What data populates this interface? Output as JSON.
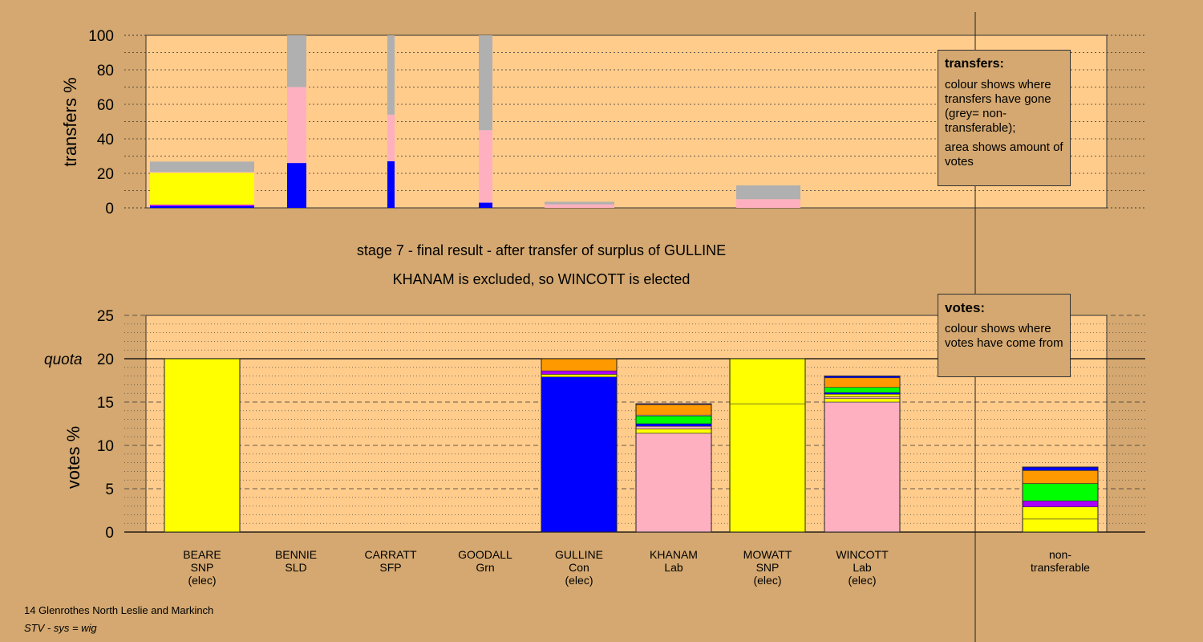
{
  "chart_data": [
    {
      "type": "bar",
      "stacked": true,
      "ylabel": "transfers %",
      "ylim": [
        0,
        100
      ],
      "yticks": [
        0,
        20,
        40,
        60,
        80,
        100
      ],
      "grid": true,
      "series_colors": {
        "SNP": "#ffff00",
        "SLD": "#aa00ff",
        "SFP": "#00ff00",
        "Con": "#0000ff",
        "Lab": "#ffb0c0",
        "Grn": "#ff9900",
        "nontransferable": "#b0b0b0"
      },
      "bars": [
        {
          "name": "BEARE",
          "segments": [
            {
              "party": "Con",
              "value": 1
            },
            {
              "party": "SLD",
              "value": 0.8
            },
            {
              "party": "SNP",
              "value": 18.5
            },
            {
              "party": "Lab",
              "value": 0.5
            },
            {
              "party": "nontransferable",
              "value": 6
            }
          ]
        },
        {
          "name": "BENNIE",
          "segments": [
            {
              "party": "Con",
              "value": 26
            },
            {
              "party": "Lab",
              "value": 44
            },
            {
              "party": "nontransferable",
              "value": 30
            }
          ]
        },
        {
          "name": "CARRATT",
          "segments": [
            {
              "party": "Con",
              "value": 27
            },
            {
              "party": "Lab",
              "value": 27
            },
            {
              "party": "nontransferable",
              "value": 46
            }
          ]
        },
        {
          "name": "GOODALL",
          "segments": [
            {
              "party": "Con",
              "value": 3
            },
            {
              "party": "Lab",
              "value": 42
            },
            {
              "party": "nontransferable",
              "value": 55
            }
          ]
        },
        {
          "name": "GULLINE",
          "segments": [
            {
              "party": "Lab",
              "value": 2
            },
            {
              "party": "nontransferable",
              "value": 1.5
            }
          ]
        },
        {
          "name": "MOWATT",
          "segments": [
            {
              "party": "Lab",
              "value": 5
            },
            {
              "party": "nontransferable",
              "value": 8
            }
          ]
        }
      ]
    },
    {
      "type": "bar",
      "stacked": true,
      "ylabel": "votes %",
      "ylim": [
        0,
        25
      ],
      "yticks": [
        0,
        5,
        10,
        15,
        20,
        25
      ],
      "quota": 20,
      "quota_label": "quota",
      "grid": true,
      "categories": [
        {
          "lines": [
            "BEARE",
            "SNP",
            "(elec)"
          ]
        },
        {
          "lines": [
            "BENNIE",
            "SLD"
          ]
        },
        {
          "lines": [
            "CARRATT",
            "SFP"
          ]
        },
        {
          "lines": [
            "GOODALL",
            "Grn"
          ]
        },
        {
          "lines": [
            "GULLINE",
            "Con",
            "(elec)"
          ]
        },
        {
          "lines": [
            "KHANAM",
            "Lab"
          ]
        },
        {
          "lines": [
            "MOWATT",
            "SNP",
            "(elec)"
          ]
        },
        {
          "lines": [
            "WINCOTT",
            "Lab",
            "(elec)"
          ]
        },
        {
          "lines": [
            "non-",
            "transferable"
          ]
        }
      ],
      "bars": [
        {
          "name": "BEARE",
          "segments": [
            {
              "color": "#ffff00",
              "value": 20
            }
          ]
        },
        {
          "name": "BENNIE",
          "segments": []
        },
        {
          "name": "CARRATT",
          "segments": []
        },
        {
          "name": "GOODALL",
          "segments": []
        },
        {
          "name": "GULLINE",
          "segments": [
            {
              "color": "#0000ff",
              "value": 17.9
            },
            {
              "color": "#ffff00",
              "value": 0.3
            },
            {
              "color": "#aa00ff",
              "value": 0.4
            },
            {
              "color": "#ff9900",
              "value": 1.4
            }
          ]
        },
        {
          "name": "KHANAM",
          "segments": [
            {
              "color": "#ffb0c0",
              "value": 11.4
            },
            {
              "color": "#ffff00",
              "value": 0.5
            },
            {
              "color": "#ffb0c0",
              "value": 0.3
            },
            {
              "color": "#0000ff",
              "value": 0.3
            },
            {
              "color": "#00ff00",
              "value": 0.9
            },
            {
              "color": "#ffb0c0",
              "value": 0.1
            },
            {
              "color": "#ff9900",
              "value": 1.2
            },
            {
              "color": "#0000ff",
              "value": 0.1
            }
          ]
        },
        {
          "name": "MOWATT",
          "segments": [
            {
              "color": "#ffff00",
              "value": 14.8
            },
            {
              "color": "#ffff00",
              "value": 5.2
            }
          ]
        },
        {
          "name": "WINCOTT",
          "segments": [
            {
              "color": "#ffb0c0",
              "value": 15
            },
            {
              "color": "#ffff00",
              "value": 0.4
            },
            {
              "color": "#ffb0c0",
              "value": 0.2
            },
            {
              "color": "#ffff00",
              "value": 0.3
            },
            {
              "color": "#0000ff",
              "value": 0.2
            },
            {
              "color": "#00ff00",
              "value": 0.6
            },
            {
              "color": "#ff9900",
              "value": 1.1
            },
            {
              "color": "#0000ff",
              "value": 0.2
            }
          ]
        },
        {
          "name": "nontransferable",
          "segments": [
            {
              "color": "#ffff00",
              "value": 1.5
            },
            {
              "color": "#ffff00",
              "value": 1.4
            },
            {
              "color": "#aa00ff",
              "value": 0.7
            },
            {
              "color": "#00ff00",
              "value": 2
            },
            {
              "color": "#ff9900",
              "value": 1.5
            },
            {
              "color": "#0000ff",
              "value": 0.4
            }
          ]
        }
      ]
    }
  ],
  "legend_transfers": {
    "title": "transfers:",
    "text1": "colour shows where transfers have gone (grey= non-transferable);",
    "text2": "area shows amount of votes"
  },
  "legend_votes": {
    "title": "votes:",
    "text1": "colour shows where votes have come from"
  },
  "caption": {
    "line1": "stage 7 - final result - after transfer of surplus of GULLINE",
    "line2": "KHANAM is excluded, so WINCOTT is elected"
  },
  "footer": {
    "line1": "14 Glenrothes North Leslie and Markinch",
    "line2": "STV - sys = wig"
  },
  "colors": {
    "background": "#d4a870",
    "plot_area": "#ffcc8c"
  }
}
